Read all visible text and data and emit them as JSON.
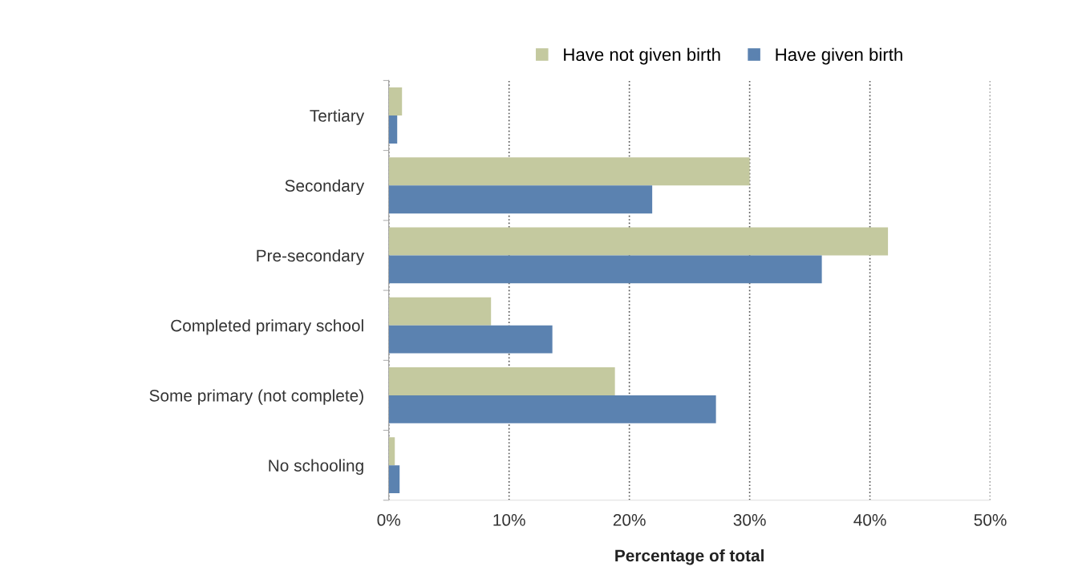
{
  "chart_data": {
    "type": "bar",
    "orientation": "horizontal",
    "xlabel": "Percentage of total",
    "categories": [
      "Tertiary",
      "Secondary",
      "Pre-secondary",
      "Completed primary school",
      "Some primary (not complete)",
      "No schooling"
    ],
    "series": [
      {
        "name": "Have not given birth",
        "color": "#c4c99f",
        "values": [
          1.1,
          30.0,
          41.5,
          8.5,
          18.8,
          0.5
        ]
      },
      {
        "name": "Have given birth",
        "color": "#5b82b0",
        "values": [
          0.7,
          21.9,
          36.0,
          13.6,
          27.2,
          0.9
        ]
      }
    ],
    "xlim": [
      0,
      50
    ],
    "xticks": [
      {
        "value": 0,
        "label": "0%"
      },
      {
        "value": 10,
        "label": "10%"
      },
      {
        "value": 20,
        "label": "20%"
      },
      {
        "value": 30,
        "label": "30%"
      },
      {
        "value": 40,
        "label": "40%"
      },
      {
        "value": 50,
        "label": "50%"
      }
    ],
    "grid": "x",
    "legend": "top"
  }
}
